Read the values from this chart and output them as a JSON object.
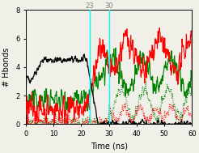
{
  "title": "",
  "xlabel": "Time (ns)",
  "ylabel": "# Hbonds",
  "xlim": [
    0,
    60
  ],
  "ylim": [
    0,
    8
  ],
  "xticks": [
    0,
    10,
    20,
    30,
    40,
    50,
    60
  ],
  "yticks": [
    0,
    2,
    4,
    6,
    8
  ],
  "vlines": [
    23,
    30
  ],
  "vline_color": "cyan",
  "vline_labels": [
    "23",
    "30"
  ],
  "figsize": [
    2.46,
    1.89
  ],
  "dpi": 100,
  "bg_color": "#f0f0e8",
  "seed": 42
}
